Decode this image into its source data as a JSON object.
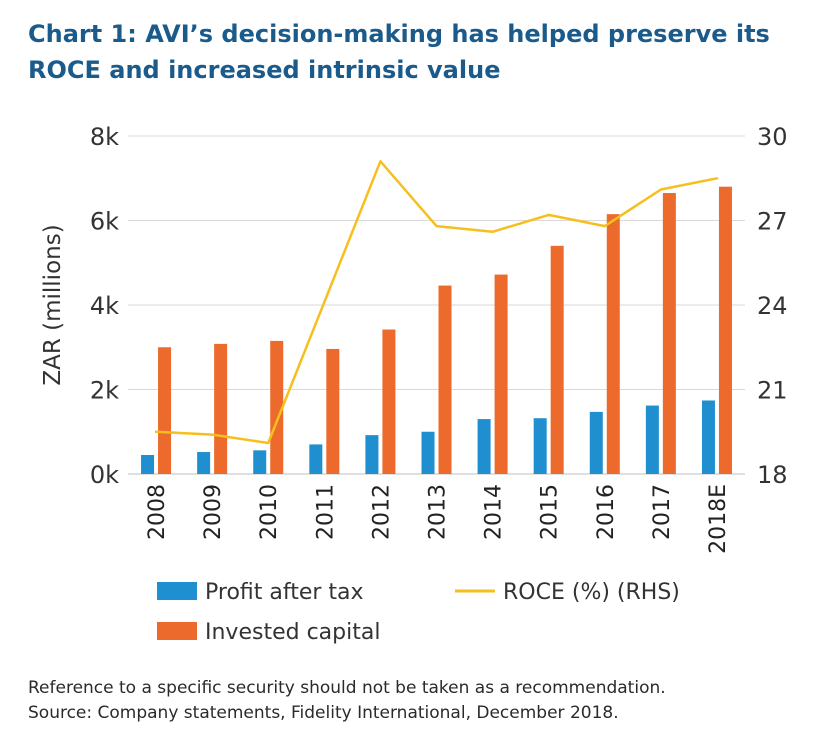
{
  "title_lines": [
    "Chart 1: AVI’s decision-making has helped preserve its",
    "ROCE and increased intrinsic value"
  ],
  "footer_lines": [
    "Reference to a specific security should not be taken as a recommendation.",
    "Source: Company statements, Fidelity International, December 2018."
  ],
  "chart_data": {
    "type": "bar",
    "title": "Chart 1: AVI’s decision-making has helped preserve its ROCE and increased intrinsic value",
    "ylabel": "ZAR (millions)",
    "ylim": [
      0,
      8000
    ],
    "y_ticks": [
      {
        "value": 0,
        "label": "0k"
      },
      {
        "value": 2000,
        "label": "2k"
      },
      {
        "value": 4000,
        "label": "4k"
      },
      {
        "value": 6000,
        "label": "6k"
      },
      {
        "value": 8000,
        "label": "8k"
      }
    ],
    "y2lim": [
      18,
      30
    ],
    "y2_ticks": [
      {
        "value": 18,
        "label": "18"
      },
      {
        "value": 21,
        "label": "21"
      },
      {
        "value": 24,
        "label": "24"
      },
      {
        "value": 27,
        "label": "27"
      },
      {
        "value": 30,
        "label": "30"
      }
    ],
    "categories": [
      "2008",
      "2009",
      "2010",
      "2011",
      "2012",
      "2013",
      "2014",
      "2015",
      "2016",
      "2017",
      "2018E"
    ],
    "series": [
      {
        "name": "Profit after tax",
        "type": "bar",
        "axis": "left",
        "color": "#1f8fd0",
        "values": [
          450,
          520,
          560,
          700,
          920,
          1000,
          1300,
          1320,
          1470,
          1620,
          1740
        ]
      },
      {
        "name": "Invested capital",
        "type": "bar",
        "axis": "left",
        "color": "#ec6a2b",
        "values": [
          3000,
          3080,
          3150,
          2960,
          3420,
          4460,
          4720,
          5400,
          6150,
          6650,
          6800
        ]
      },
      {
        "name": "ROCE (%) (RHS)",
        "type": "line",
        "axis": "right",
        "color": "#f7bf1e",
        "values": [
          19.5,
          19.4,
          19.1,
          24.1,
          29.1,
          26.8,
          26.6,
          27.2,
          26.8,
          28.1,
          28.5
        ]
      }
    ],
    "grid": true,
    "legend_position": "bottom"
  }
}
